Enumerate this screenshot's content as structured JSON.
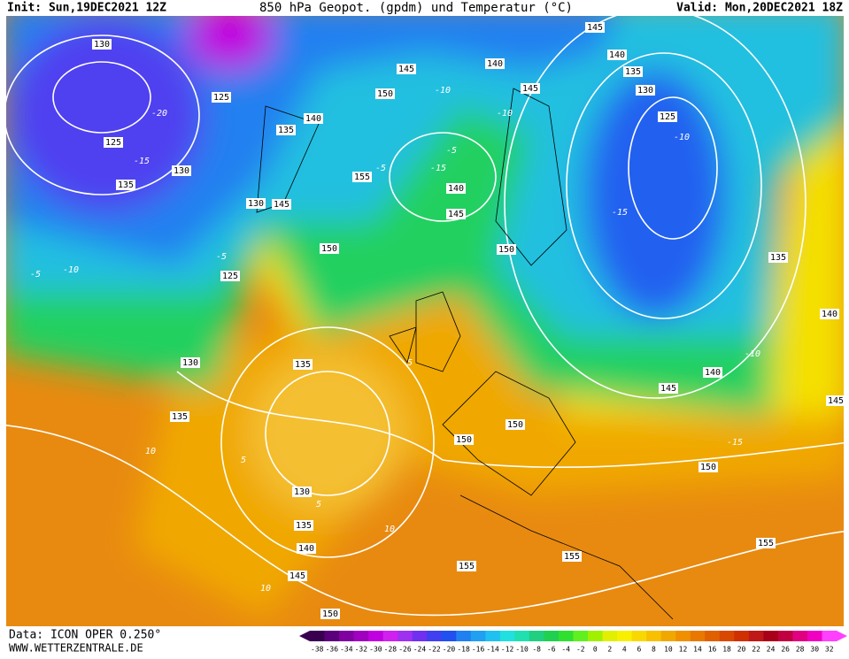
{
  "header": {
    "init": "Init: Sun,19DEC2021 12Z",
    "title": "850 hPa Geopot. (gpdm) und Temperatur (°C)",
    "valid": "Valid: Mon,20DEC2021 18Z"
  },
  "footer": {
    "data": "Data: ICON OPER 0.250°",
    "site": "WWW.WETTERZENTRALE.DE"
  },
  "map": {
    "contour_labels": [
      "130",
      "125",
      "130",
      "135",
      "125",
      "130",
      "145",
      "135",
      "140",
      "150",
      "145",
      "155",
      "140",
      "145",
      "150",
      "150",
      "125",
      "130",
      "135",
      "135",
      "150",
      "150",
      "130",
      "135",
      "140",
      "145",
      "155",
      "155",
      "150",
      "150",
      "155",
      "145",
      "140",
      "135",
      "140",
      "145",
      "145",
      "140",
      "135",
      "130",
      "125",
      "140",
      "145"
    ],
    "temperature_labels": [
      "-20",
      "-15",
      "-10",
      "-5",
      "-10",
      "-15",
      "-10",
      "-15",
      "-10",
      "-5",
      "-5",
      "5",
      "5",
      "10",
      "10",
      "-10",
      "-15",
      "-5",
      "-5",
      "10"
    ]
  },
  "scale": {
    "labels": [
      -38,
      -36,
      -34,
      -32,
      -30,
      -28,
      -26,
      -24,
      -22,
      -20,
      -18,
      -16,
      -14,
      -12,
      -10,
      -8,
      -6,
      -4,
      -2,
      0,
      2,
      4,
      6,
      8,
      10,
      12,
      14,
      16,
      18,
      20,
      22,
      24,
      26,
      28,
      30,
      32
    ],
    "colors": [
      "#3a0050",
      "#5a007a",
      "#8000a0",
      "#a000c0",
      "#c000e0",
      "#d020f0",
      "#a030f0",
      "#7030f0",
      "#4040f0",
      "#2050f0",
      "#2080f0",
      "#20a0f0",
      "#20c0f0",
      "#20e0e0",
      "#20e0b0",
      "#20d080",
      "#20d050",
      "#30e030",
      "#60f020",
      "#a0f000",
      "#e0f000",
      "#f8f000",
      "#f8d800",
      "#f8c000",
      "#f0a800",
      "#f09000",
      "#e87800",
      "#e06000",
      "#d84800",
      "#d03000",
      "#c01818",
      "#a80018",
      "#c00040",
      "#e00080",
      "#f000c0",
      "#ff40ff"
    ]
  }
}
